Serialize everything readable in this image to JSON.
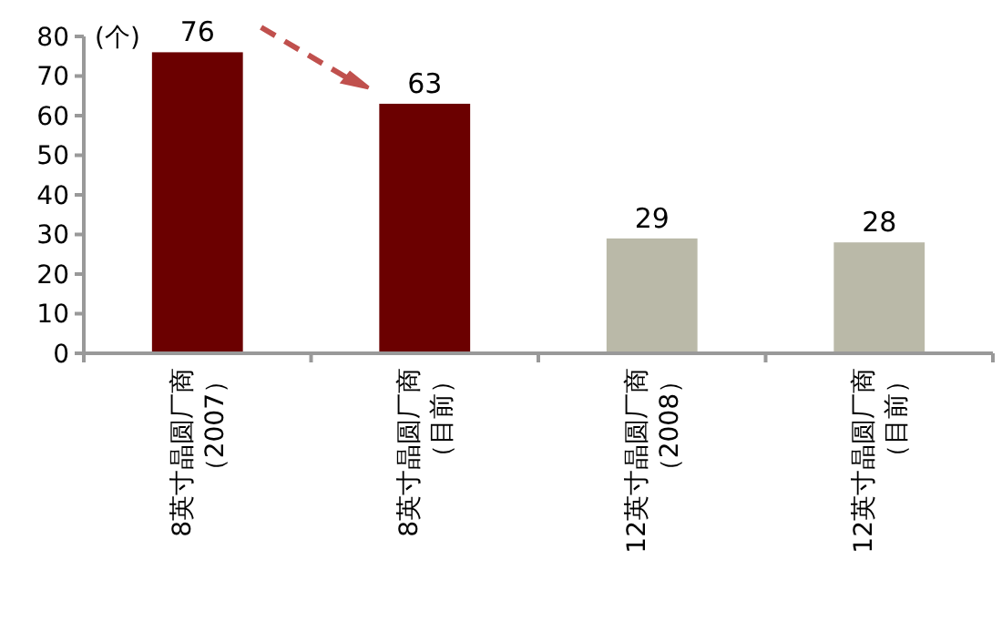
{
  "chart_data": {
    "type": "bar",
    "ylabel": "(个)",
    "categories": [
      "8英寸晶圆厂商（2007）",
      "8英寸晶圆厂商（目前）",
      "12英寸晶圆厂商（2008）",
      "12英寸晶圆厂商（目前）"
    ],
    "values": [
      76,
      63,
      29,
      28
    ],
    "colors": [
      "#6b0000",
      "#6b0000",
      "#bab9a8",
      "#bab9a8"
    ],
    "ylim": [
      0,
      80
    ],
    "yticks": [
      0,
      10,
      20,
      30,
      40,
      50,
      60,
      70,
      80
    ],
    "data_labels": true,
    "grid": false
  }
}
